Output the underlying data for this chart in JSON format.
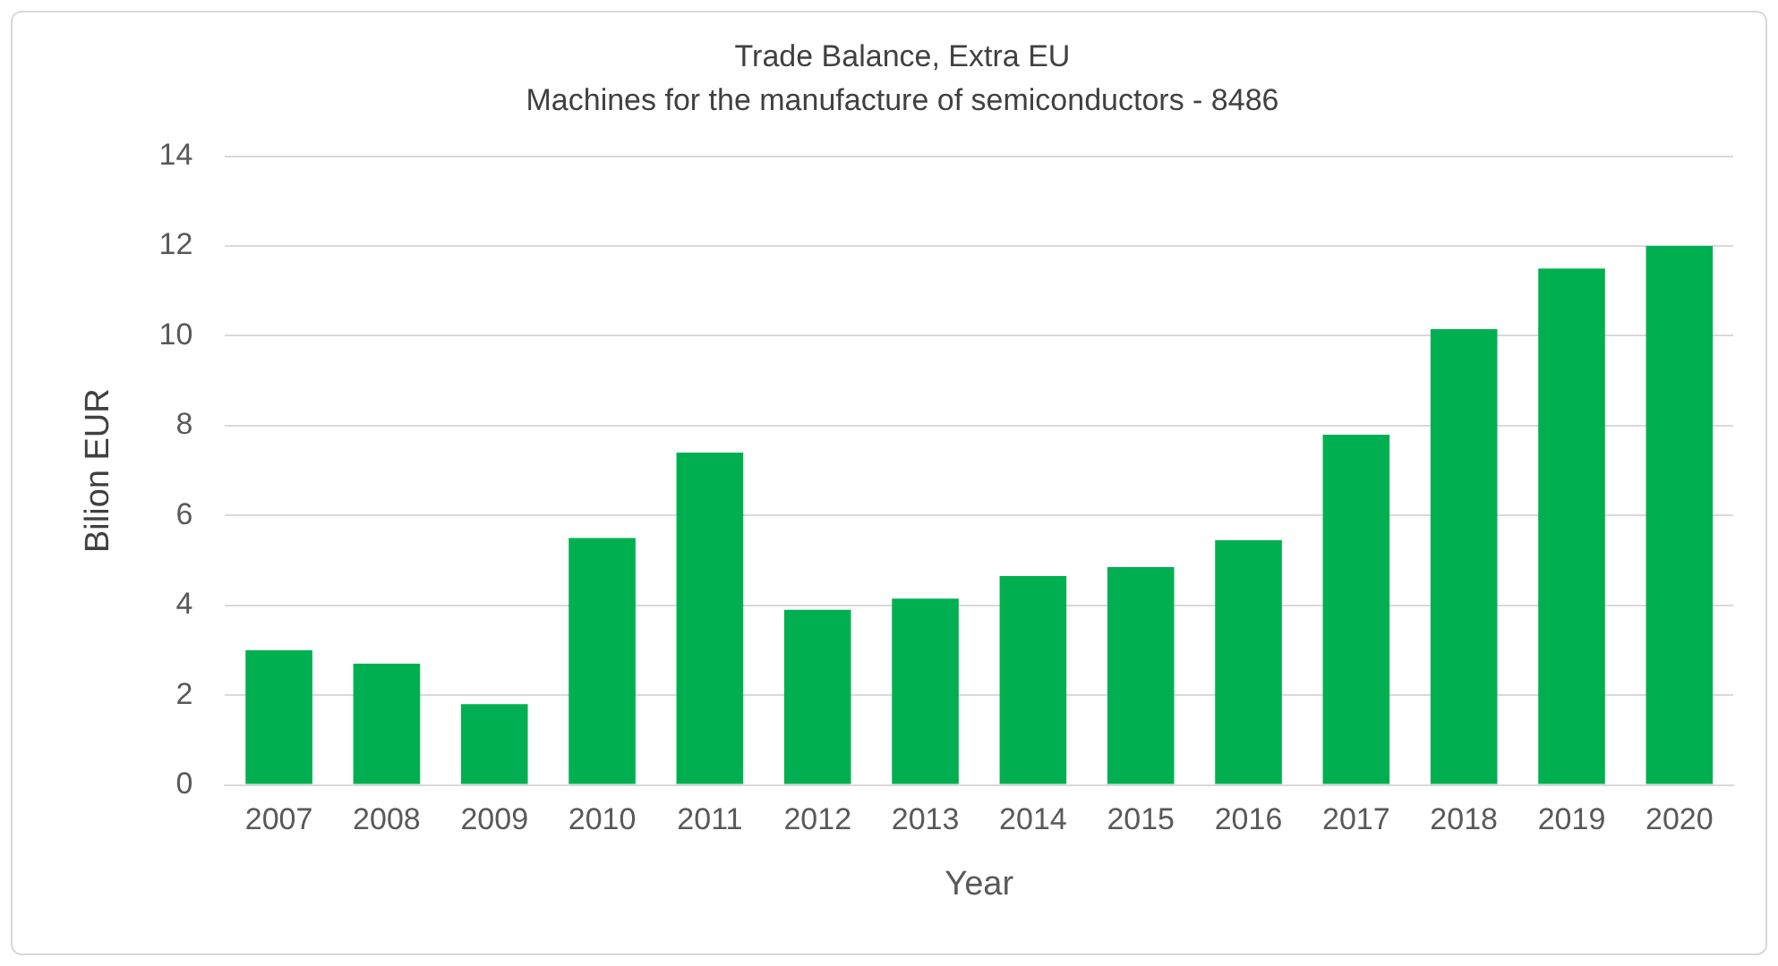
{
  "chart_data": {
    "type": "bar",
    "title": "Trade Balance, Extra EU",
    "subtitle": "Machines for the manufacture of semiconductors - 8486",
    "xlabel": "Year",
    "ylabel": "Bilion EUR",
    "categories": [
      "2007",
      "2008",
      "2009",
      "2010",
      "2011",
      "2012",
      "2013",
      "2014",
      "2015",
      "2016",
      "2017",
      "2018",
      "2019",
      "2020"
    ],
    "values": [
      3.0,
      2.7,
      1.8,
      5.5,
      7.4,
      3.9,
      4.15,
      4.65,
      4.85,
      5.45,
      7.8,
      10.15,
      11.5,
      12.0
    ],
    "color": "#00b050",
    "ylim": [
      0,
      14
    ],
    "yticks": [
      0,
      2,
      4,
      6,
      8,
      10,
      12,
      14
    ],
    "grid": "y",
    "legend": false
  }
}
